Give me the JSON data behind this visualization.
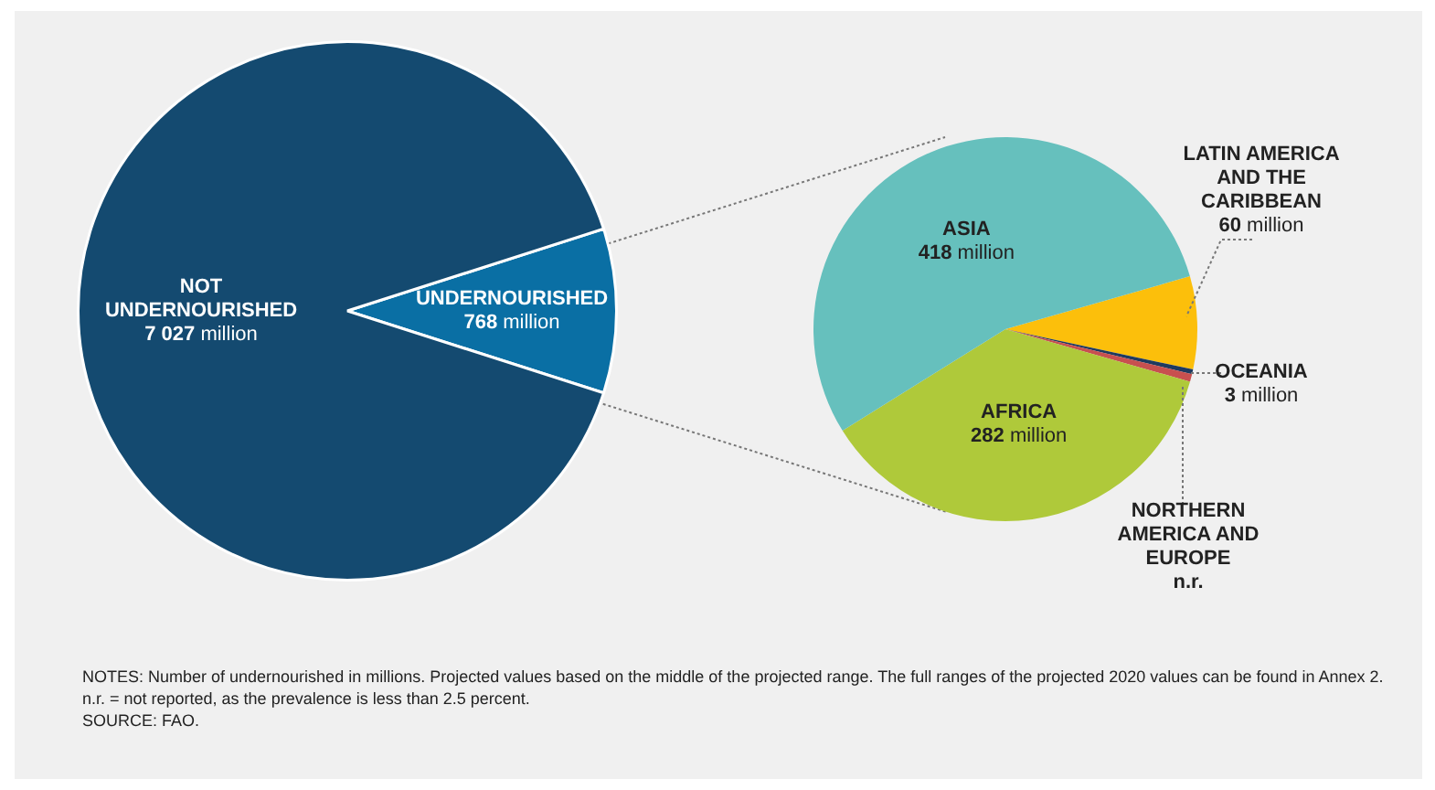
{
  "chart_data": [
    {
      "type": "pie",
      "categories": [
        "UNDERNOURISHED",
        "NOT UNDERNOURISHED"
      ],
      "values": [
        768,
        7027
      ],
      "colors": [
        "#0a6fa4",
        "#144a70"
      ],
      "value_labels": [
        "768 million",
        "7 027 million"
      ],
      "annotations": [
        "NOTES: Number of undernourished in millions. Projected values based on the middle of the projected range. The full ranges of the projected 2020 values can be found in Annex 2. n.r. = not reported, as the prevalence is less than 2.5 percent.",
        "SOURCE: FAO."
      ]
    },
    {
      "type": "pie",
      "categories": [
        "LATIN AMERICA AND THE CARIBBEAN",
        "OCEANIA",
        "NORTHERN AMERICA AND EUROPE",
        "AFRICA",
        "ASIA"
      ],
      "values": [
        60,
        3,
        5,
        282,
        418
      ],
      "colors": [
        "#fcbf0b",
        "#1f3a5f",
        "#c8504f",
        "#afc93a",
        "#66c0bd"
      ],
      "value_labels": [
        "60 million",
        "3 million",
        "n.r.",
        "282 million",
        "418 million"
      ]
    }
  ]
}
